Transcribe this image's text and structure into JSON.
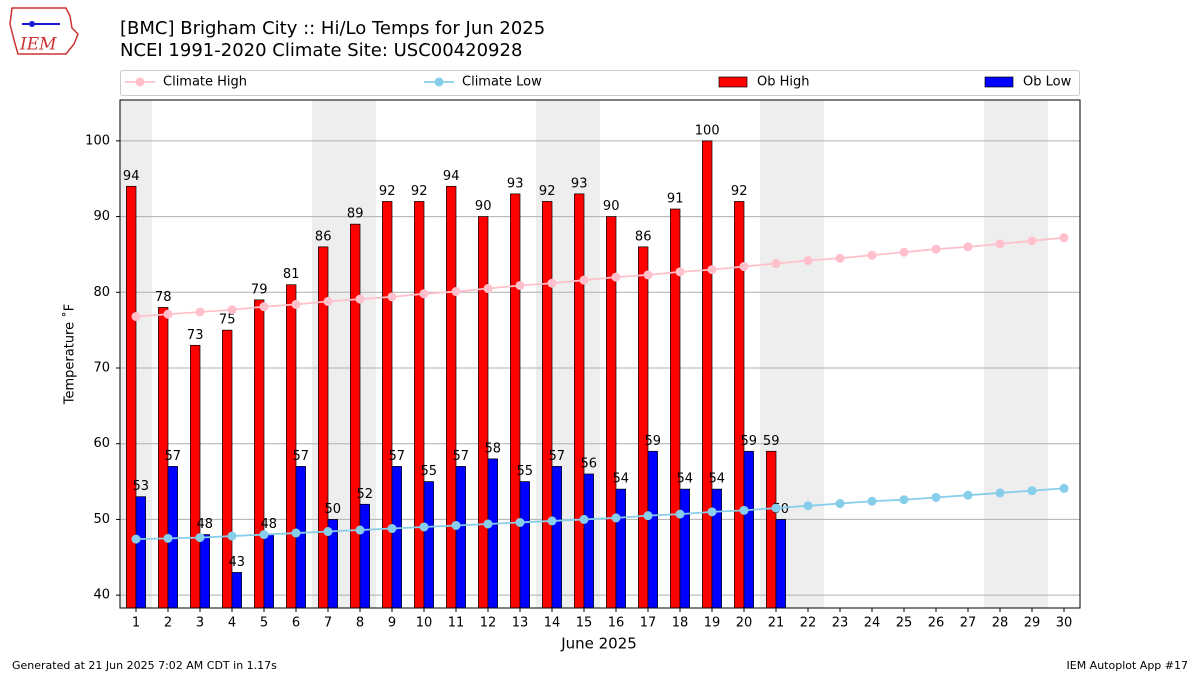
{
  "logo_text": "IEM",
  "footer_left": "Generated at 21 Jun 2025 7:02 AM CDT in 1.17s",
  "footer_right": "IEM Autoplot App #17",
  "chart_data": {
    "type": "bar",
    "title": "[BMC] Brigham City :: Hi/Lo Temps for Jun 2025",
    "subtitle": "NCEI 1991-2020 Climate Site: USC00420928",
    "xlabel": "June 2025",
    "ylabel": "Temperature ˚F",
    "categories": [
      "1",
      "2",
      "3",
      "4",
      "5",
      "6",
      "7",
      "8",
      "9",
      "10",
      "11",
      "12",
      "13",
      "14",
      "15",
      "16",
      "17",
      "18",
      "19",
      "20",
      "21",
      "22",
      "23",
      "24",
      "25",
      "26",
      "27",
      "28",
      "29",
      "30"
    ],
    "shaded_days": [
      1,
      7,
      8,
      14,
      15,
      21,
      22,
      28,
      29
    ],
    "ylim": [
      38.3,
      105.4
    ],
    "yticks": [
      40,
      50,
      60,
      70,
      80,
      90,
      100
    ],
    "grid": true,
    "series": [
      {
        "name": "Climate High",
        "kind": "line",
        "color": "#ffc0cb",
        "values": [
          76.8,
          77.1,
          77.4,
          77.7,
          78.1,
          78.4,
          78.8,
          79.1,
          79.4,
          79.8,
          80.1,
          80.5,
          80.9,
          81.2,
          81.6,
          82.0,
          82.3,
          82.7,
          83.0,
          83.4,
          83.8,
          84.2,
          84.5,
          84.9,
          85.3,
          85.7,
          86.0,
          86.4,
          86.8,
          87.2
        ]
      },
      {
        "name": "Climate Low",
        "kind": "line",
        "color": "#87ceeb",
        "values": [
          47.4,
          47.5,
          47.6,
          47.8,
          48.0,
          48.2,
          48.4,
          48.6,
          48.8,
          49.0,
          49.2,
          49.4,
          49.6,
          49.8,
          50.0,
          50.2,
          50.5,
          50.7,
          51.0,
          51.2,
          51.5,
          51.8,
          52.1,
          52.4,
          52.6,
          52.9,
          53.2,
          53.5,
          53.8,
          54.1
        ]
      },
      {
        "name": "Ob High",
        "kind": "bar",
        "color": "#ff0000",
        "values": [
          94,
          78,
          73,
          75,
          79,
          81,
          86,
          89,
          92,
          92,
          94,
          90,
          93,
          92,
          93,
          90,
          86,
          91,
          100,
          92,
          59,
          null,
          null,
          null,
          null,
          null,
          null,
          null,
          null,
          null
        ]
      },
      {
        "name": "Ob Low",
        "kind": "bar",
        "color": "#0000ff",
        "values": [
          53,
          57,
          48,
          43,
          48,
          57,
          50,
          52,
          57,
          55,
          57,
          58,
          55,
          57,
          56,
          54,
          59,
          54,
          54,
          59,
          50,
          null,
          null,
          null,
          null,
          null,
          null,
          null,
          null,
          null
        ]
      }
    ]
  }
}
